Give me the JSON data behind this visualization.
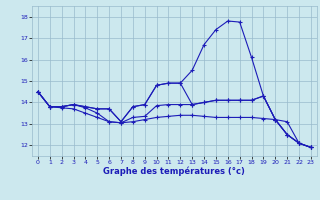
{
  "xlabel": "Graphe des températures (°c)",
  "hours": [
    0,
    1,
    2,
    3,
    4,
    5,
    6,
    7,
    8,
    9,
    10,
    11,
    12,
    13,
    14,
    15,
    16,
    17,
    18,
    19,
    20,
    21,
    22,
    23
  ],
  "series": {
    "s1": [
      14.5,
      13.8,
      13.8,
      13.9,
      13.8,
      13.7,
      13.7,
      13.1,
      13.8,
      13.9,
      14.8,
      14.9,
      14.9,
      15.5,
      16.7,
      17.4,
      17.8,
      17.75,
      16.1,
      14.3,
      13.2,
      12.5,
      12.1,
      11.9
    ],
    "s2": [
      14.5,
      13.8,
      13.8,
      13.9,
      13.8,
      13.7,
      13.7,
      13.1,
      13.8,
      13.9,
      14.8,
      14.9,
      14.9,
      13.9,
      14.0,
      14.1,
      14.1,
      14.1,
      14.1,
      14.3,
      13.2,
      12.5,
      12.1,
      11.9
    ],
    "s3": [
      14.5,
      13.8,
      13.8,
      13.9,
      13.75,
      13.5,
      13.1,
      13.05,
      13.3,
      13.35,
      13.85,
      13.9,
      13.9,
      13.9,
      14.0,
      14.1,
      14.1,
      14.1,
      14.1,
      14.3,
      13.2,
      12.5,
      12.1,
      11.9
    ],
    "s4": [
      14.5,
      13.8,
      13.75,
      13.7,
      13.5,
      13.3,
      13.1,
      13.05,
      13.1,
      13.2,
      13.3,
      13.35,
      13.4,
      13.4,
      13.35,
      13.3,
      13.3,
      13.3,
      13.3,
      13.25,
      13.2,
      13.1,
      12.1,
      11.9
    ]
  },
  "line_color": "#1c1cb8",
  "bg_color": "#cce8ee",
  "grid_color": "#99bbcc",
  "ylim": [
    11.5,
    18.5
  ],
  "xlim": [
    -0.5,
    23.5
  ],
  "yticks": [
    12,
    13,
    14,
    15,
    16,
    17,
    18
  ],
  "xticks": [
    0,
    1,
    2,
    3,
    4,
    5,
    6,
    7,
    8,
    9,
    10,
    11,
    12,
    13,
    14,
    15,
    16,
    17,
    18,
    19,
    20,
    21,
    22,
    23
  ]
}
